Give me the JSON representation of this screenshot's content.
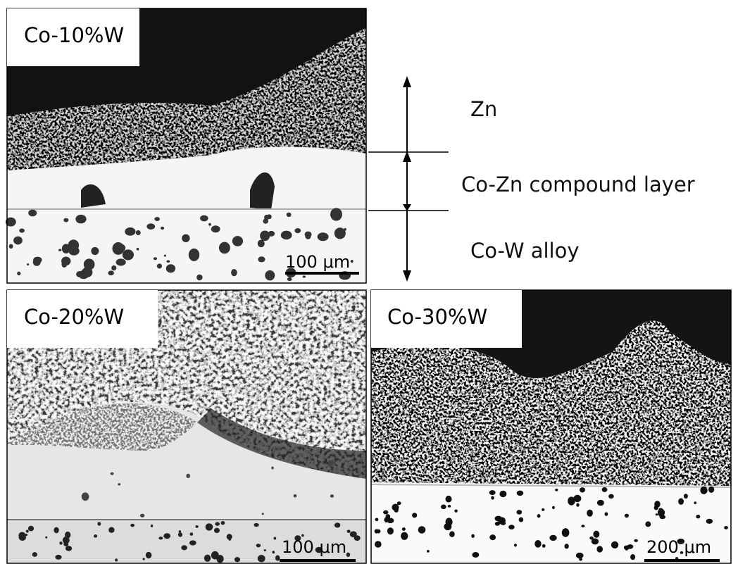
{
  "panels": [
    {
      "label": "Co-10%W",
      "scale_bar": "100 μm"
    },
    {
      "label": "Co-20%W",
      "scale_bar": "100 μm"
    },
    {
      "label": "Co-30%W",
      "scale_bar": "200 μm"
    }
  ],
  "annotations": {
    "zn": "Zn",
    "compound": "Co-Zn compound layer",
    "alloy": "Co-W alloy"
  }
}
